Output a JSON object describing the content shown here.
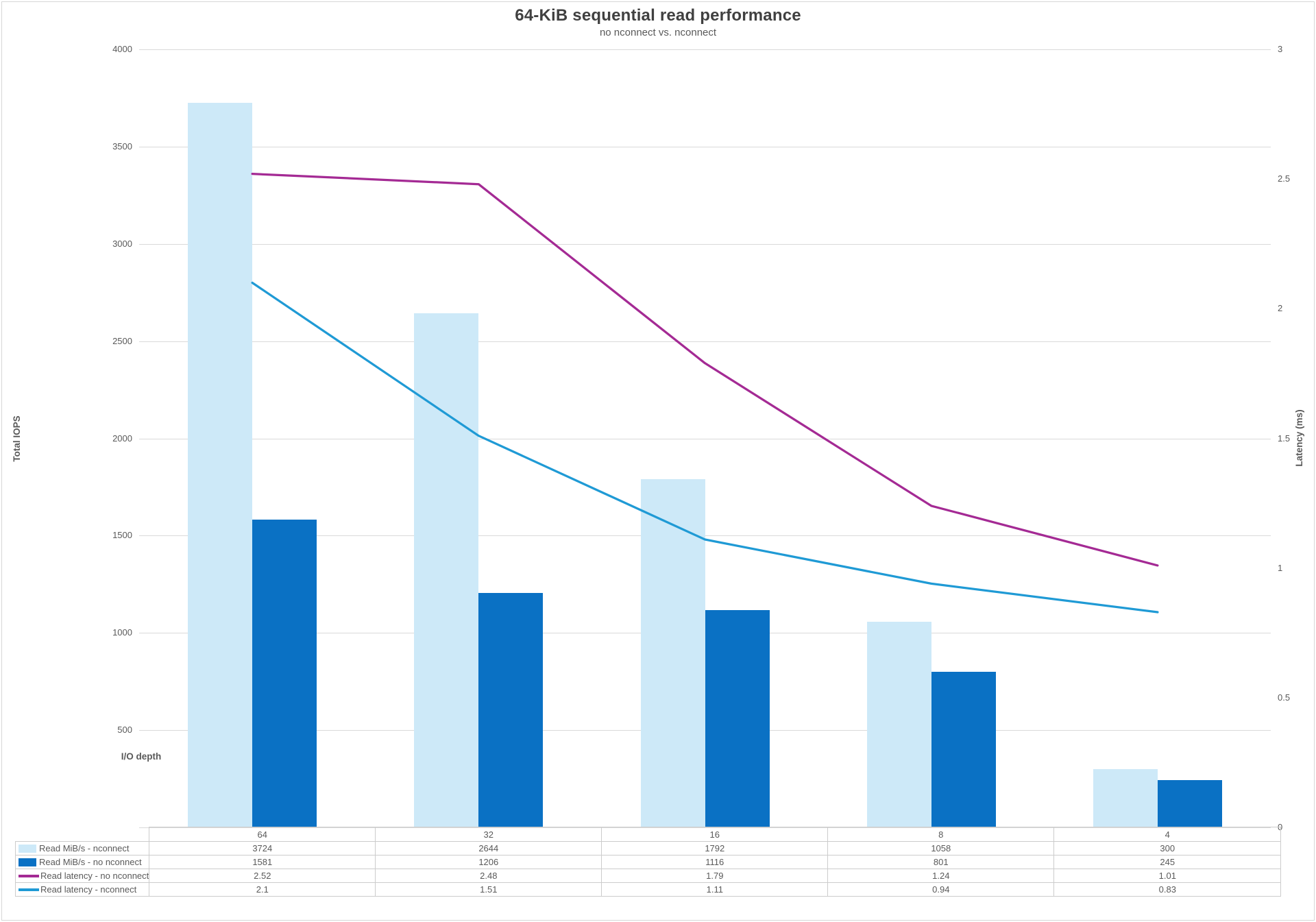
{
  "header": {
    "title": "64-KiB sequential read performance",
    "subtitle": "no nconnect vs. nconnect"
  },
  "axes": {
    "left_title": "Total IOPS",
    "right_title": "Latency (ms)",
    "x_title": "I/O depth"
  },
  "chart_data": {
    "type": "bar+line combo with data table legend",
    "categories": [
      "64",
      "32",
      "16",
      "8",
      "4"
    ],
    "series": [
      {
        "name": "Read MiB/s - nconnect",
        "type": "bar",
        "axis": "left",
        "color": "#CDE9F8",
        "values": [
          3724,
          2644,
          1792,
          1058,
          300
        ]
      },
      {
        "name": "Read MiB/s - no nconnect",
        "type": "bar",
        "axis": "left",
        "color": "#0A71C4",
        "values": [
          1581,
          1206,
          1116,
          801,
          245
        ]
      },
      {
        "name": "Read latency - no nconnect",
        "type": "line",
        "axis": "right",
        "color": "#A42A94",
        "values": [
          2.52,
          2.48,
          1.79,
          1.24,
          1.01
        ]
      },
      {
        "name": "Read latency - nconnect",
        "type": "line",
        "axis": "right",
        "color": "#1F9AD5",
        "values": [
          2.1,
          1.51,
          1.11,
          0.94,
          0.83
        ]
      }
    ],
    "table_values": [
      [
        "3724",
        "2644",
        "1792",
        "1058",
        "300"
      ],
      [
        "1581",
        "1206",
        "1116",
        "801",
        "245"
      ],
      [
        "2.52",
        "2.48",
        "1.79",
        "1.24",
        "1.01"
      ],
      [
        "2.1",
        "1.51",
        "1.11",
        "0.94",
        "0.83"
      ]
    ],
    "left_axis": {
      "min": 0,
      "max": 4000,
      "tick_labels": [
        "4000",
        "3500",
        "3000",
        "2500",
        "2000",
        "1500",
        "1000",
        "500"
      ]
    },
    "right_axis": {
      "min": 0,
      "max": 3,
      "tick_labels": [
        "3",
        "2.5",
        "2",
        "1.5",
        "1",
        "0.5",
        "0"
      ]
    },
    "grid": true,
    "legend_position": "data-table-left-column",
    "gridline_color": "#D9D9D9",
    "text_color": "#595959",
    "title_color": "#404040"
  }
}
